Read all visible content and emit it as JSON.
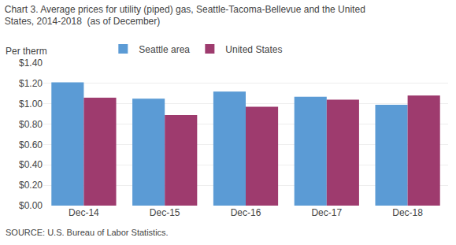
{
  "chart_data": {
    "type": "bar",
    "title": "Chart 3. Average prices for utility (piped) gas, Seattle-Tacoma-Bellevue and the United",
    "subtitle": "States, 2014-2018  (as of December)",
    "ylabel": "Per therm",
    "source": "SOURCE: U.S. Bureau of Labor Statistics.",
    "categories": [
      "Dec-14",
      "Dec-15",
      "Dec-16",
      "Dec-17",
      "Dec-18"
    ],
    "series": [
      {
        "name": "Seattle area",
        "color": "#5B9BD5",
        "values": [
          1.21,
          1.05,
          1.12,
          1.07,
          0.99
        ]
      },
      {
        "name": "United States",
        "color": "#9E3B6E",
        "values": [
          1.06,
          0.89,
          0.97,
          1.04,
          1.08
        ]
      }
    ],
    "ylim": [
      0.0,
      1.4
    ],
    "yticks": [
      {
        "value": 0.0,
        "label": "$0.00"
      },
      {
        "value": 0.2,
        "label": "$0.20"
      },
      {
        "value": 0.4,
        "label": "$0.40"
      },
      {
        "value": 0.6,
        "label": "$0.60"
      },
      {
        "value": 0.8,
        "label": "$0.80"
      },
      {
        "value": 1.0,
        "label": "$1.00"
      },
      {
        "value": 1.2,
        "label": "$1.20"
      },
      {
        "value": 1.4,
        "label": "$1.40"
      }
    ],
    "grid": true,
    "legend": "top"
  }
}
